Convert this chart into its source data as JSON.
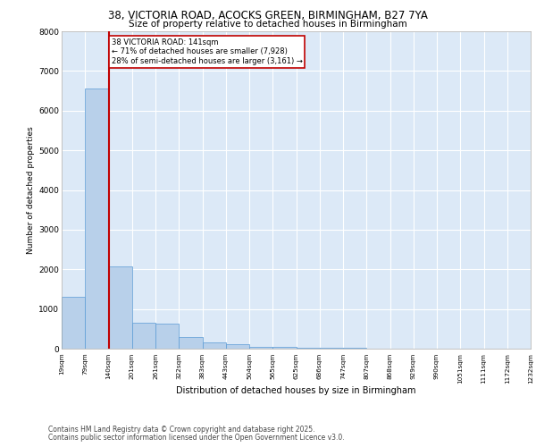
{
  "title_line1": "38, VICTORIA ROAD, ACOCKS GREEN, BIRMINGHAM, B27 7YA",
  "title_line2": "Size of property relative to detached houses in Birmingham",
  "xlabel": "Distribution of detached houses by size in Birmingham",
  "ylabel": "Number of detached properties",
  "subject_label": "38 VICTORIA ROAD: 141sqm",
  "annotation_line2": "← 71% of detached houses are smaller (7,928)",
  "annotation_line3": "28% of semi-detached houses are larger (3,161) →",
  "subject_value": 141,
  "subject_bar_index": 2,
  "bar_heights": [
    1300,
    6550,
    2080,
    660,
    640,
    290,
    155,
    105,
    55,
    45,
    30,
    20,
    12,
    8,
    5,
    4,
    3,
    2,
    1,
    1
  ],
  "tick_labels": [
    "19sqm",
    "79sqm",
    "140sqm",
    "201sqm",
    "261sqm",
    "322sqm",
    "383sqm",
    "443sqm",
    "504sqm",
    "565sqm",
    "625sqm",
    "686sqm",
    "747sqm",
    "807sqm",
    "868sqm",
    "929sqm",
    "990sqm",
    "1051sqm",
    "1111sqm",
    "1172sqm",
    "1232sqm"
  ],
  "bar_color": "#b8d0ea",
  "bar_edge_color": "#5b9bd5",
  "subject_line_color": "#c00000",
  "annotation_box_color": "#c00000",
  "background_color": "#dce9f7",
  "grid_color": "#ffffff",
  "ylim": [
    0,
    8000
  ],
  "yticks": [
    0,
    1000,
    2000,
    3000,
    4000,
    5000,
    6000,
    7000,
    8000
  ],
  "footer_line1": "Contains HM Land Registry data © Crown copyright and database right 2025.",
  "footer_line2": "Contains public sector information licensed under the Open Government Licence v3.0."
}
